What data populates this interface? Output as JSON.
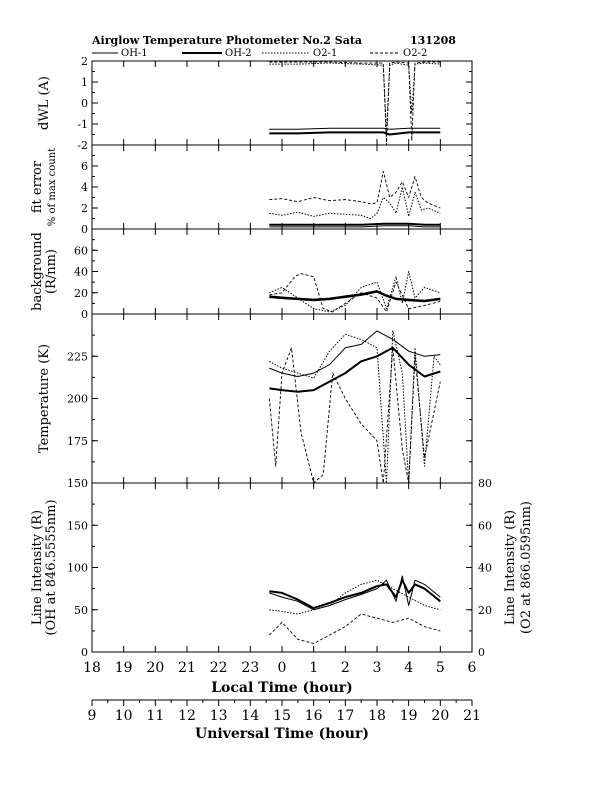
{
  "chart_data": {
    "type": "line",
    "title": "Airglow Temperature Photometer No.2  Sata",
    "date_code": "131208",
    "legend": [
      {
        "name": "OH-1",
        "style": "thin-solid"
      },
      {
        "name": "OH-2",
        "style": "thick-solid"
      },
      {
        "name": "O2-1",
        "style": "dotted"
      },
      {
        "name": "O2-2",
        "style": "dashed"
      }
    ],
    "x_local": {
      "label": "Local Time (hour)",
      "ticks": [
        "18",
        "19",
        "20",
        "21",
        "22",
        "23",
        "0",
        "1",
        "2",
        "3",
        "4",
        "5",
        "6"
      ]
    },
    "x_universal": {
      "label": "Universal Time (hour)",
      "ticks": [
        "9",
        "10",
        "11",
        "12",
        "13",
        "14",
        "15",
        "16",
        "17",
        "18",
        "19",
        "20",
        "21"
      ]
    },
    "panels": [
      {
        "id": "dwl",
        "ylabel_lines": [
          "dWL (A)"
        ],
        "yrange": [
          -2,
          2
        ],
        "ticks": [
          "2",
          "1",
          "0",
          "-1",
          "-2"
        ],
        "series": [
          {
            "name": "OH-1",
            "x": [
              23.6,
              24.5,
              25.5,
              26.5,
              27.2,
              27.4,
              28,
              29
            ],
            "y": [
              -1.25,
              -1.25,
              -1.2,
              -1.2,
              -1.2,
              -1.25,
              -1.2,
              -1.2
            ]
          },
          {
            "name": "OH-2",
            "x": [
              23.6,
              24.5,
              25.5,
              26.5,
              27.2,
              27.4,
              28,
              29
            ],
            "y": [
              -1.45,
              -1.45,
              -1.4,
              -1.4,
              -1.4,
              -1.5,
              -1.4,
              -1.4
            ]
          },
          {
            "name": "O2-1",
            "x": [
              23.6,
              24.5,
              25.5,
              26.5,
              27.2,
              27.3,
              27.4,
              27.6,
              28,
              28.1,
              28.2,
              28.5,
              29
            ],
            "y": [
              1.85,
              1.85,
              1.9,
              1.85,
              1.8,
              -1.5,
              1.8,
              1.9,
              1.8,
              -0.5,
              1.85,
              1.9,
              1.85
            ]
          },
          {
            "name": "O2-2",
            "x": [
              23.6,
              24.5,
              25.5,
              26.5,
              27.2,
              27.3,
              27.4,
              27.6,
              28,
              28.1,
              28.2,
              28.5,
              29
            ],
            "y": [
              1.95,
              1.95,
              1.95,
              1.9,
              1.9,
              -2,
              1.9,
              1.95,
              1.9,
              -1.8,
              1.9,
              1.95,
              1.95
            ]
          }
        ]
      },
      {
        "id": "fit",
        "ylabel_lines": [
          "fit error",
          "% of max count"
        ],
        "yrange": [
          0,
          8
        ],
        "ticks": [
          "6",
          "4",
          "2",
          "0"
        ],
        "series": [
          {
            "name": "OH-1",
            "x": [
              23.6,
              24.5,
              25.5,
              26.5,
              27.2,
              28,
              28.5,
              29
            ],
            "y": [
              0.2,
              0.2,
              0.2,
              0.2,
              0.3,
              0.3,
              0.2,
              0.2
            ]
          },
          {
            "name": "OH-2",
            "x": [
              23.6,
              24.5,
              25.5,
              26.5,
              27.2,
              28,
              28.5,
              29
            ],
            "y": [
              0.4,
              0.4,
              0.4,
              0.4,
              0.5,
              0.5,
              0.4,
              0.4
            ]
          },
          {
            "name": "O2-1",
            "x": [
              23.6,
              24,
              24.5,
              25,
              25.5,
              26,
              26.5,
              26.8,
              27,
              27.2,
              27.4,
              27.6,
              27.8,
              28,
              28.2,
              28.4,
              28.6,
              29
            ],
            "y": [
              1.5,
              1.3,
              1.6,
              1.2,
              1.5,
              1.4,
              1.3,
              1.0,
              1.5,
              3.0,
              2.5,
              1.5,
              4.0,
              1.2,
              3.5,
              1.8,
              2.0,
              1.5
            ]
          },
          {
            "name": "O2-2",
            "x": [
              23.6,
              24,
              24.5,
              25,
              25.5,
              26,
              26.5,
              26.8,
              27,
              27.2,
              27.4,
              27.6,
              27.8,
              28,
              28.2,
              28.4,
              28.6,
              29
            ],
            "y": [
              2.8,
              2.9,
              2.6,
              3.0,
              2.7,
              2.8,
              2.6,
              2.4,
              2.5,
              5.5,
              3.0,
              3.5,
              4.5,
              3.0,
              5.0,
              3.0,
              2.5,
              2.0
            ]
          }
        ]
      },
      {
        "id": "bg",
        "ylabel_lines": [
          "background",
          "(R/nm)"
        ],
        "yrange": [
          0,
          80
        ],
        "ticks": [
          "60",
          "40",
          "20",
          "0"
        ],
        "series": [
          {
            "name": "OH-1",
            "x": [
              23.6,
              24,
              24.5,
              25,
              25.5,
              26,
              26.5,
              27,
              27.3,
              27.6,
              28,
              28.5,
              29
            ],
            "y": [
              17,
              16,
              15,
              14,
              15,
              17,
              19,
              22,
              18,
              15,
              14,
              13,
              15
            ]
          },
          {
            "name": "OH-2",
            "x": [
              23.6,
              24,
              24.5,
              25,
              25.5,
              26,
              26.5,
              27,
              27.3,
              27.6,
              28,
              28.5,
              29
            ],
            "y": [
              16,
              15,
              14,
              13,
              14,
              16,
              18,
              21,
              17,
              14,
              13,
              12,
              14
            ]
          },
          {
            "name": "O2-1",
            "x": [
              23.6,
              24,
              24.5,
              25,
              25.5,
              26,
              26.5,
              27,
              27.3,
              27.6,
              27.8,
              28,
              28.2,
              28.5,
              29
            ],
            "y": [
              20,
              25,
              15,
              5,
              2,
              8,
              25,
              30,
              5,
              35,
              10,
              40,
              15,
              25,
              20
            ]
          },
          {
            "name": "O2-2",
            "x": [
              23.6,
              24,
              24.4,
              24.6,
              25,
              25.3,
              25.6,
              26,
              26.5,
              27,
              27.3,
              27.6,
              28,
              28.5,
              29
            ],
            "y": [
              18,
              20,
              35,
              38,
              35,
              5,
              2,
              10,
              20,
              15,
              2,
              30,
              5,
              8,
              12
            ]
          }
        ]
      },
      {
        "id": "temp",
        "ylabel_lines": [
          "Temperature (K)"
        ],
        "yrange": [
          150,
          250
        ],
        "ticks": [
          "225",
          "200",
          "175",
          "150"
        ],
        "series": [
          {
            "name": "OH-1",
            "x": [
              23.6,
              24,
              24.5,
              25,
              25.5,
              26,
              26.5,
              27,
              27.5,
              28,
              28.5,
              29
            ],
            "y": [
              218,
              215,
              213,
              215,
              220,
              230,
              232,
              240,
              235,
              228,
              225,
              226
            ]
          },
          {
            "name": "OH-2",
            "x": [
              23.6,
              24,
              24.5,
              25,
              25.5,
              26,
              26.5,
              27,
              27.5,
              28,
              28.5,
              29
            ],
            "y": [
              206,
              205,
              204,
              205,
              210,
              215,
              222,
              225,
              230,
              220,
              213,
              216
            ]
          },
          {
            "name": "O2-1",
            "x": [
              23.6,
              24,
              24.5,
              25,
              25.5,
              26,
              26.5,
              27,
              27.3,
              27.5,
              27.8,
              28,
              28.2,
              28.5,
              28.8,
              29
            ],
            "y": [
              222,
              218,
              215,
              212,
              228,
              238,
              235,
              230,
              150,
              240,
              215,
              150,
              230,
              160,
              225,
              220
            ]
          },
          {
            "name": "O2-2",
            "x": [
              23.6,
              23.8,
              24,
              24.3,
              24.6,
              25,
              25.3,
              25.6,
              26,
              26.5,
              27,
              27.2,
              27.5,
              27.8,
              28,
              28.2,
              28.5,
              29
            ],
            "y": [
              200,
              160,
              215,
              230,
              180,
              150,
              155,
              215,
              200,
              185,
              175,
              150,
              230,
              170,
              150,
              225,
              165,
              210
            ]
          }
        ]
      },
      {
        "id": "int",
        "ylabel_lines": [
          "Line Intensity (R)",
          "(OH at 846.5555nm)"
        ],
        "ylabel_right_lines": [
          "Line Intensity (R)",
          "(O2 at 866.0595nm)"
        ],
        "yrange": [
          0,
          200
        ],
        "yrange_right": [
          0,
          80
        ],
        "ticks": [
          "150",
          "100",
          "50",
          "0"
        ],
        "ticks_right": [
          "80",
          "60",
          "40",
          "20",
          "0"
        ],
        "series": [
          {
            "name": "OH-1",
            "x": [
              23.6,
              24,
              24.5,
              25,
              25.5,
              26,
              26.5,
              27,
              27.3,
              27.6,
              27.8,
              28,
              28.2,
              28.5,
              29
            ],
            "y": [
              70,
              65,
              60,
              50,
              55,
              62,
              68,
              75,
              85,
              60,
              90,
              55,
              85,
              80,
              65
            ]
          },
          {
            "name": "OH-2",
            "x": [
              23.6,
              24,
              24.5,
              25,
              25.5,
              26,
              26.5,
              27,
              27.3,
              27.6,
              27.8,
              28,
              28.2,
              28.5,
              29
            ],
            "y": [
              72,
              70,
              62,
              52,
              58,
              65,
              70,
              78,
              80,
              65,
              85,
              70,
              80,
              75,
              60
            ]
          },
          {
            "name": "O2-1",
            "x": [
              23.6,
              24,
              24.5,
              25,
              25.5,
              26,
              26.5,
              27,
              27.5,
              28,
              28.5,
              29
            ],
            "y": [
              50,
              48,
              45,
              50,
              55,
              70,
              80,
              85,
              75,
              65,
              55,
              50
            ]
          },
          {
            "name": "O2-2",
            "x": [
              23.6,
              24,
              24.5,
              25,
              25.5,
              26,
              26.5,
              27,
              27.5,
              28,
              28.5,
              29
            ],
            "y": [
              20,
              35,
              15,
              10,
              20,
              30,
              45,
              40,
              35,
              40,
              30,
              25
            ]
          }
        ]
      }
    ]
  }
}
